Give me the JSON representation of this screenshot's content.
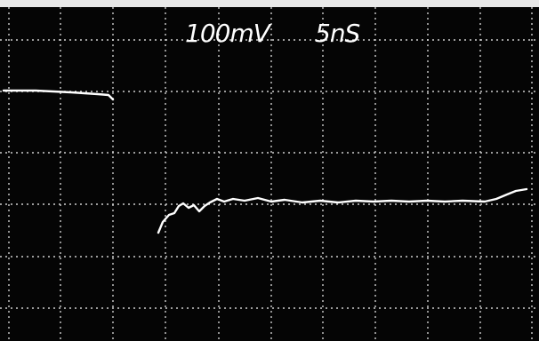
{
  "display": {
    "volts_per_div": "100mV",
    "time_per_div": "5nS"
  }
}
